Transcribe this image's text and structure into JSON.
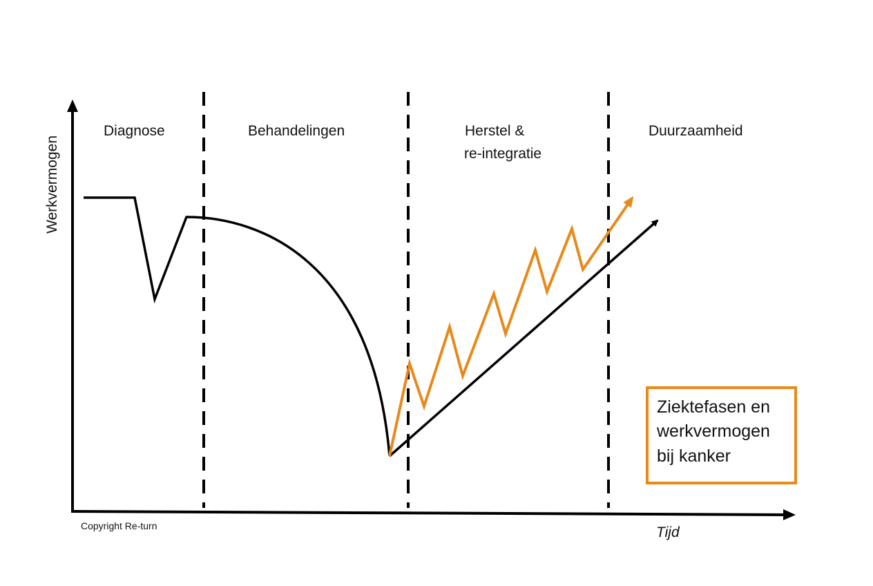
{
  "diagram": {
    "y_axis_label": "Werkvermogen",
    "x_axis_label": "Tijd",
    "copyright": "Copyright Re-turn",
    "phases": [
      {
        "lines": [
          "Diagnose"
        ]
      },
      {
        "lines": [
          "Behandelingen"
        ]
      },
      {
        "lines": [
          "Herstel &",
          "re-integratie"
        ]
      },
      {
        "lines": [
          "Duurzaamheid"
        ]
      }
    ],
    "title_box": {
      "lines": [
        "Ziektefasen en",
        "werkvermogen",
        "bij kanker"
      ]
    },
    "colors": {
      "axis": "#000000",
      "baseline_curve": "#000000",
      "recovery_curve": "#e8891a",
      "title_box_border": "#e8891a"
    }
  }
}
